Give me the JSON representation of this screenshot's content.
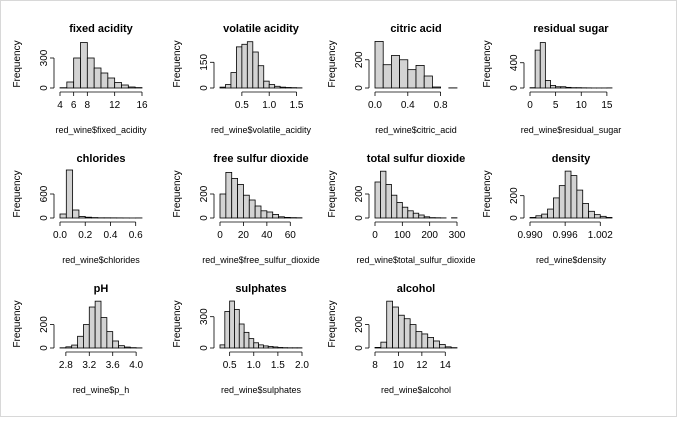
{
  "chart_data": [
    {
      "type": "bar",
      "title": "fixed acidity",
      "xlabel": "red_wine$fixed_acidity",
      "ylabel": "Frequency",
      "bins": [
        4,
        5,
        6,
        7,
        8,
        9,
        10,
        11,
        12,
        13,
        14,
        15,
        16
      ],
      "counts": [
        3,
        60,
        300,
        455,
        300,
        200,
        150,
        100,
        55,
        30,
        10,
        4
      ],
      "xlim": [
        4,
        16
      ],
      "xticks": [
        4,
        6,
        8,
        12,
        16
      ],
      "ylim": [
        0,
        480
      ],
      "yticks": [
        0,
        300
      ]
    },
    {
      "type": "bar",
      "title": "volatile acidity",
      "xlabel": "red_wine$volatile_acidity",
      "ylabel": "Frequency",
      "bins": [
        0.1,
        0.2,
        0.3,
        0.4,
        0.5,
        0.6,
        0.7,
        0.8,
        0.9,
        1.0,
        1.1,
        1.2,
        1.3,
        1.4,
        1.5,
        1.6
      ],
      "counts": [
        5,
        20,
        90,
        240,
        255,
        270,
        210,
        130,
        40,
        20,
        10,
        5,
        3,
        2,
        1
      ],
      "xlim": [
        0.1,
        1.6
      ],
      "xticks": [
        0.5,
        1.0,
        1.5
      ],
      "ylim": [
        0,
        280
      ],
      "yticks": [
        0,
        150
      ]
    },
    {
      "type": "bar",
      "title": "citric acid",
      "xlabel": "red_wine$citric_acid",
      "ylabel": "Frequency",
      "bins": [
        0,
        0.1,
        0.2,
        0.3,
        0.4,
        0.5,
        0.6,
        0.7,
        0.8,
        0.9,
        1.0
      ],
      "counts": [
        330,
        165,
        230,
        200,
        130,
        160,
        85,
        7,
        0,
        1
      ],
      "xlim": [
        0,
        1.0
      ],
      "xticks": [
        0.0,
        0.4,
        0.8
      ],
      "ylim": [
        0,
        340
      ],
      "yticks": [
        0,
        200
      ]
    },
    {
      "type": "bar",
      "title": "residual sugar",
      "xlabel": "red_wine$residual_sugar",
      "ylabel": "Frequency",
      "bins": [
        0,
        1,
        2,
        3,
        4,
        5,
        6,
        7,
        8,
        9,
        10,
        11,
        12,
        13,
        14,
        15,
        16
      ],
      "counts": [
        5,
        600,
        720,
        120,
        40,
        20,
        20,
        10,
        5,
        5,
        3,
        2,
        1,
        1,
        1,
        2
      ],
      "xlim": [
        0,
        16
      ],
      "xticks": [
        0,
        5,
        10,
        15
      ],
      "ylim": [
        0,
        760
      ],
      "yticks": [
        0,
        400
      ]
    },
    {
      "type": "bar",
      "title": "chlorides",
      "xlabel": "red_wine$chlorides",
      "ylabel": "Frequency",
      "bins": [
        0,
        0.05,
        0.1,
        0.15,
        0.2,
        0.25,
        0.3,
        0.35,
        0.4,
        0.45,
        0.5,
        0.55,
        0.6,
        0.65
      ],
      "counts": [
        100,
        1200,
        200,
        40,
        20,
        10,
        5,
        5,
        4,
        3,
        2,
        1,
        2
      ],
      "xlim": [
        0,
        0.65
      ],
      "xticks": [
        0.0,
        0.2,
        0.4,
        0.6
      ],
      "ylim": [
        0,
        1200
      ],
      "yticks": [
        0,
        600
      ]
    },
    {
      "type": "bar",
      "title": "free sulfur dioxide",
      "xlabel": "red_wine$free_sulfur_dioxide",
      "ylabel": "Frequency",
      "bins": [
        0,
        5,
        10,
        15,
        20,
        25,
        30,
        35,
        40,
        45,
        50,
        55,
        60,
        65,
        70
      ],
      "counts": [
        200,
        380,
        330,
        280,
        190,
        150,
        100,
        60,
        50,
        30,
        10,
        5,
        3,
        2
      ],
      "xlim": [
        0,
        70
      ],
      "xticks": [
        0,
        20,
        40,
        60
      ],
      "ylim": [
        0,
        400
      ],
      "yticks": [
        0,
        200
      ]
    },
    {
      "type": "bar",
      "title": "total sulfur dioxide",
      "xlabel": "red_wine$total_sulfur_dioxide",
      "ylabel": "Frequency",
      "bins": [
        0,
        20,
        40,
        60,
        80,
        100,
        120,
        140,
        160,
        180,
        200,
        220,
        240,
        260,
        280,
        300
      ],
      "counts": [
        300,
        390,
        280,
        190,
        130,
        90,
        60,
        40,
        25,
        10,
        3,
        2,
        1,
        0,
        2
      ],
      "xlim": [
        0,
        300
      ],
      "xticks": [
        0,
        100,
        200,
        300
      ],
      "ylim": [
        0,
        400
      ],
      "yticks": [
        0,
        200
      ]
    },
    {
      "type": "bar",
      "title": "density",
      "xlabel": "red_wine$density",
      "ylabel": "Frequency",
      "bins": [
        0.99,
        0.991,
        0.992,
        0.993,
        0.994,
        0.995,
        0.996,
        0.997,
        0.998,
        0.999,
        1.0,
        1.001,
        1.002,
        1.003,
        1.004
      ],
      "counts": [
        5,
        20,
        35,
        80,
        180,
        290,
        420,
        380,
        250,
        130,
        60,
        30,
        15,
        5
      ],
      "xlim": [
        0.99,
        1.004
      ],
      "xticks": [
        0.99,
        0.996,
        1.002
      ],
      "ylim": [
        0,
        430
      ],
      "yticks": [
        0,
        200
      ]
    },
    {
      "type": "bar",
      "title": "pH",
      "xlabel": "red_wine$p_h",
      "ylabel": "Frequency",
      "bins": [
        2.7,
        2.8,
        2.9,
        3.0,
        3.1,
        3.2,
        3.3,
        3.4,
        3.5,
        3.6,
        3.7,
        3.8,
        3.9,
        4.0,
        4.1
      ],
      "counts": [
        2,
        10,
        25,
        100,
        200,
        350,
        400,
        260,
        140,
        60,
        20,
        8,
        3,
        1
      ],
      "xlim": [
        2.7,
        4.1
      ],
      "xticks": [
        2.8,
        3.2,
        3.6,
        4.0
      ],
      "ylim": [
        0,
        410
      ],
      "yticks": [
        0,
        200
      ]
    },
    {
      "type": "bar",
      "title": "sulphates",
      "xlabel": "red_wine$sulphates",
      "ylabel": "Frequency",
      "bins": [
        0.3,
        0.4,
        0.5,
        0.6,
        0.7,
        0.8,
        0.9,
        1.0,
        1.1,
        1.2,
        1.3,
        1.4,
        1.5,
        1.6,
        1.7,
        1.8,
        1.9,
        2.0
      ],
      "counts": [
        30,
        350,
        450,
        370,
        230,
        150,
        90,
        50,
        30,
        20,
        15,
        10,
        5,
        3,
        2,
        2,
        2
      ],
      "xlim": [
        0.3,
        2.0
      ],
      "xticks": [
        0.5,
        1.0,
        1.5,
        2.0
      ],
      "ylim": [
        0,
        460
      ],
      "yticks": [
        0,
        300
      ]
    },
    {
      "type": "bar",
      "title": "alcohol",
      "xlabel": "red_wine$alcohol",
      "ylabel": "Frequency",
      "bins": [
        8,
        8.5,
        9,
        9.5,
        10,
        10.5,
        11,
        11.5,
        12,
        12.5,
        13,
        13.5,
        14,
        14.5,
        15
      ],
      "counts": [
        5,
        50,
        400,
        350,
        280,
        250,
        200,
        140,
        120,
        90,
        60,
        30,
        10,
        3
      ],
      "xlim": [
        8,
        15
      ],
      "xticks": [
        8,
        10,
        12,
        14
      ],
      "ylim": [
        0,
        410
      ],
      "yticks": [
        0,
        200
      ]
    }
  ]
}
